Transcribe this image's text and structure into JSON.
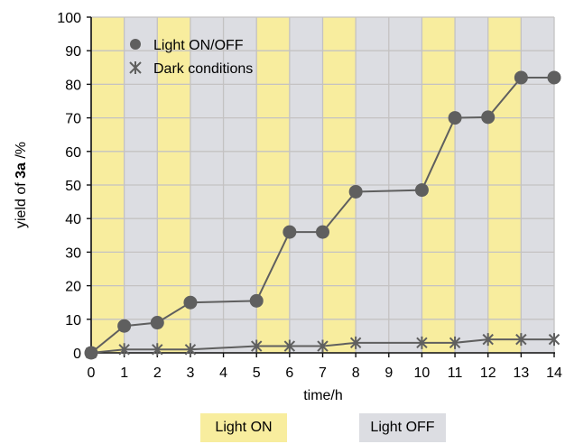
{
  "chart_data": {
    "type": "line",
    "title": "",
    "xlabel": "time/h",
    "ylabel_prefix": "yield of ",
    "ylabel_bold": "3a",
    "ylabel_suffix": " /%",
    "xlim": [
      0,
      14
    ],
    "ylim": [
      0,
      100
    ],
    "xticks": [
      0,
      1,
      2,
      3,
      4,
      5,
      6,
      7,
      8,
      9,
      10,
      11,
      12,
      13,
      14
    ],
    "yticks": [
      0,
      10,
      20,
      30,
      40,
      50,
      60,
      70,
      80,
      90,
      100
    ],
    "grid": true,
    "legend_position": "top-left",
    "series": [
      {
        "name": "Light ON/OFF",
        "marker": "circle",
        "x": [
          0,
          1,
          2,
          3,
          5,
          6,
          7,
          8,
          10,
          11,
          12,
          13,
          14
        ],
        "y": [
          0,
          8,
          9,
          15,
          15.5,
          36,
          36,
          48,
          48.5,
          70,
          70.2,
          82,
          82
        ]
      },
      {
        "name": "Dark conditions",
        "marker": "asterisk",
        "x": [
          0,
          1,
          2,
          3,
          5,
          6,
          7,
          8,
          10,
          11,
          12,
          13,
          14
        ],
        "y": [
          0,
          1,
          1,
          1,
          2,
          2,
          2,
          3,
          3,
          3,
          4,
          4,
          4
        ]
      }
    ],
    "bands": [
      {
        "start": 0,
        "end": 1,
        "state": "on"
      },
      {
        "start": 1,
        "end": 2,
        "state": "off"
      },
      {
        "start": 2,
        "end": 3,
        "state": "on"
      },
      {
        "start": 3,
        "end": 5,
        "state": "off"
      },
      {
        "start": 5,
        "end": 6,
        "state": "on"
      },
      {
        "start": 6,
        "end": 7,
        "state": "off"
      },
      {
        "start": 7,
        "end": 8,
        "state": "on"
      },
      {
        "start": 8,
        "end": 10,
        "state": "off"
      },
      {
        "start": 10,
        "end": 11,
        "state": "on"
      },
      {
        "start": 11,
        "end": 12,
        "state": "off"
      },
      {
        "start": 12,
        "end": 13,
        "state": "on"
      },
      {
        "start": 13,
        "end": 14,
        "state": "off"
      }
    ],
    "band_legend": {
      "on_label": "Light ON",
      "off_label": "Light OFF"
    }
  },
  "colors": {
    "light_on": "#f8ed9e",
    "light_off": "#dcdde2",
    "series": "#5f5f5f",
    "grid": "#c4c2c2"
  }
}
